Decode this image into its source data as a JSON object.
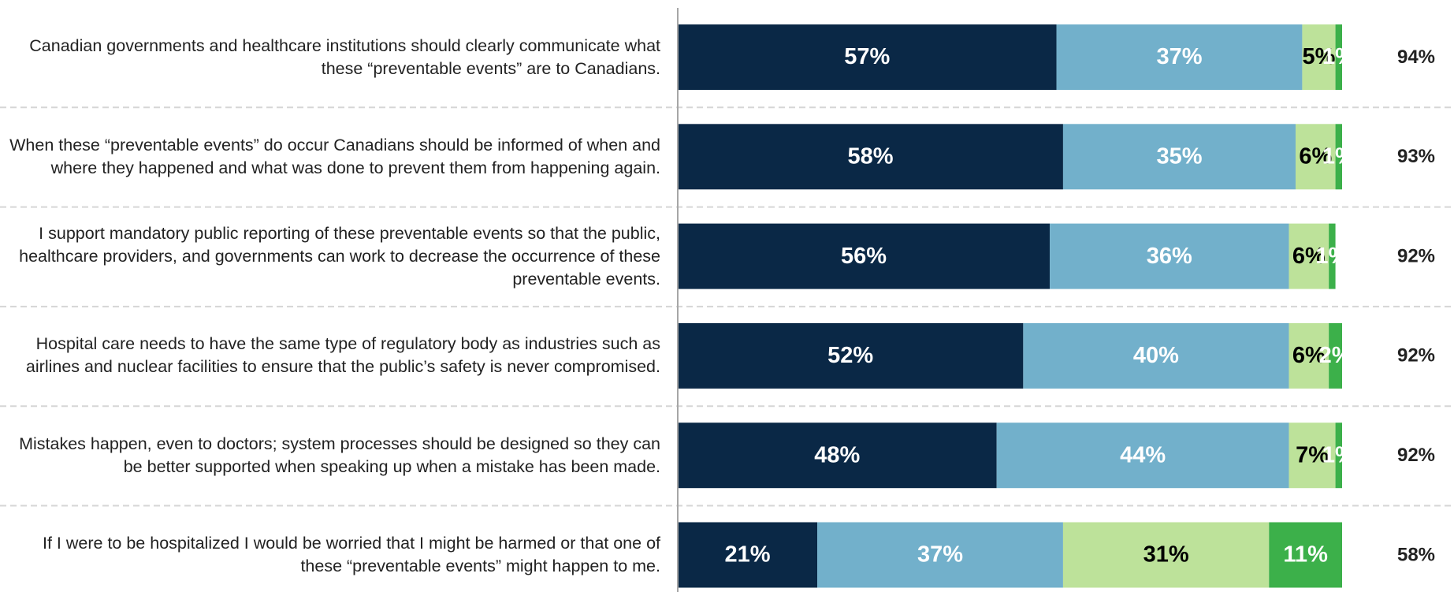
{
  "chart_data": {
    "type": "stacked_barh",
    "categories": [
      "Canadian governments and healthcare institutions should clearly communicate what these “preventable events” are to Canadians.",
      "When these “preventable events” do occur Canadians should be informed of when and where they happened and what was done to prevent them from happening again.",
      "I support mandatory public reporting of these preventable events so that the public, healthcare providers, and governments can work to decrease the occurrence of these preventable events.",
      "Hospital care needs to have the same type of regulatory body as industries such as airlines and nuclear facilities to ensure that the public’s safety is never compromised.",
      "Mistakes happen, even to doctors; system processes should be designed so they can be better supported when speaking up when a mistake has been made.",
      "If I were to be hospitalized I would be worried that I might be harmed or that one of these “preventable events” might happen to me."
    ],
    "series": [
      {
        "color": "#0a2846",
        "label_color": "#ffffff",
        "values": [
          57,
          58,
          56,
          52,
          48,
          21
        ],
        "value_labels": [
          "57%",
          "58%",
          "56%",
          "52%",
          "48%",
          "21%"
        ]
      },
      {
        "color": "#72b0cb",
        "label_color": "#ffffff",
        "values": [
          37,
          35,
          36,
          40,
          44,
          37
        ],
        "value_labels": [
          "37%",
          "35%",
          "36%",
          "40%",
          "44%",
          "37%"
        ]
      },
      {
        "color": "#bde29a",
        "label_color": "#000000",
        "values": [
          5,
          6,
          6,
          6,
          7,
          31
        ],
        "value_labels": [
          "5%",
          "6%",
          "6%",
          "6%",
          "7%",
          "31%"
        ]
      },
      {
        "color": "#3cb04a",
        "label_color": "#ffffff",
        "values": [
          1,
          1,
          1,
          2,
          1,
          11
        ],
        "value_labels": [
          "1%",
          "1%",
          "1%",
          "2%",
          "1%",
          "11%"
        ]
      }
    ],
    "totals": {
      "values": [
        94,
        93,
        92,
        92,
        92,
        58
      ],
      "value_labels": [
        "94%",
        "93%",
        "92%",
        "92%",
        "92%",
        "58%"
      ]
    },
    "xlim": [
      0,
      100
    ]
  }
}
